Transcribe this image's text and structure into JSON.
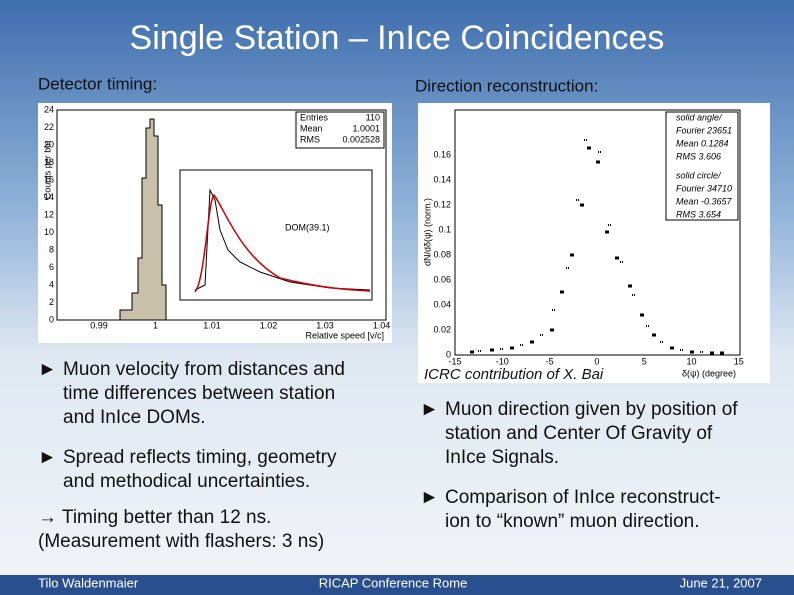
{
  "header": {
    "title": "Single Station – InIce Coincidences"
  },
  "left": {
    "heading": "Detector timing:",
    "plot": {
      "ylabel": "Counts per bin",
      "xlabel": "Relative speed [v/c]",
      "yticks": [
        "0",
        "2",
        "4",
        "6",
        "8",
        "10",
        "12",
        "14",
        "16",
        "18",
        "20",
        "22",
        "24"
      ],
      "xticks": [
        "0.99",
        "1",
        "1.01",
        "1.02",
        "1.03",
        "1.04"
      ],
      "stats": [
        "Entries",
        "110",
        "Mean",
        "1.0001",
        "RMS",
        "0.002528"
      ],
      "inset_label": "DOM(39.1)"
    },
    "bullets": [
      [
        "Muon velocity from distances and",
        "time differences between station",
        "and InIce DOMs."
      ],
      [
        "Spread reflects timing, geometry",
        "and methodical uncertainties."
      ]
    ],
    "note": [
      "→ Timing better than 12 ns.",
      "(Measurement with flashers: 3 ns)"
    ]
  },
  "right": {
    "heading": "Direction reconstruction:",
    "plot": {
      "ylabel": "dN/dδ(ψ) (norm.)",
      "xlabel": "δ(ψ) (degree)",
      "yticks": [
        "0",
        "0.02",
        "0.04",
        "0.06",
        "0.08",
        "0.1",
        "0.12",
        "0.14",
        "0.16"
      ],
      "xticks": [
        "-15",
        "-10",
        "-5",
        "0",
        "5",
        "10",
        "15"
      ],
      "legend": [
        "solid angle/",
        "Fourier 23651",
        "Mean 0.1284",
        "RMS 3.606",
        "solid circle/",
        "Fourier 34710",
        "Mean -0.3657",
        "RMS 3.654"
      ]
    },
    "caption": "ICRC contribution of X. Bai",
    "bullets": [
      [
        "Muon direction given by position of",
        "station and Center Of Gravity of",
        "InIce Signals."
      ],
      [
        "Comparison of InIce reconstruct-",
        "ion to “known” muon direction."
      ]
    ]
  },
  "footer": {
    "author": "Tilo Waldenmaier",
    "event": "RICAP Conference Rome",
    "date": "June 21, 2007"
  }
}
